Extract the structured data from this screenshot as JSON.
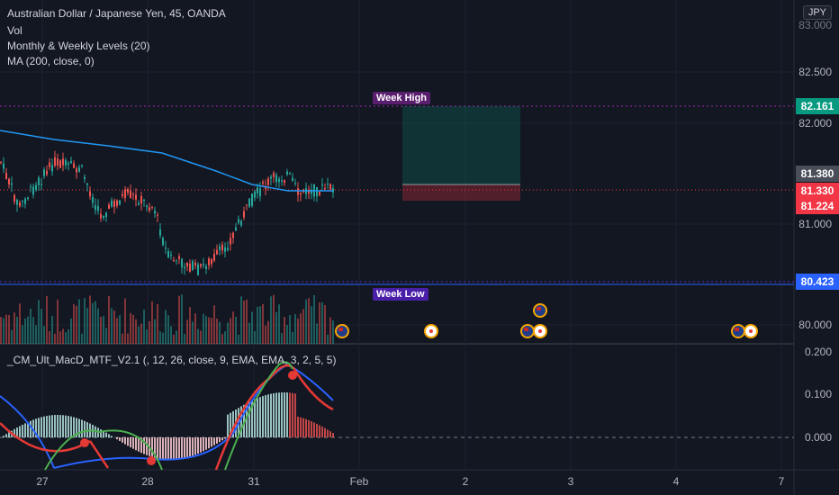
{
  "header": {
    "symbol_title": "Australian Dollar / Japanese Yen, 45, OANDA",
    "indicators": [
      "Vol",
      "Monthly & Weekly Levels (20)",
      "MA (200, close, 0)"
    ],
    "macd_title": "_CM_Ult_MacD_MTF_V2.1 (, 12, 26, close, 9, EMA, EMA, 3, 2, 5, 5)"
  },
  "currency_button": "JPY",
  "price_axis": {
    "top_partial": "83.000",
    "ticks": [
      "82.500",
      "82.000",
      "81.000",
      "80.000"
    ],
    "tags": [
      {
        "value": "82.161",
        "color": "#089981"
      },
      {
        "value": "81.380",
        "color": "#4a4e59"
      },
      {
        "value": "81.330",
        "color": "#f23645"
      },
      {
        "value": "81.224",
        "color": "#f23645"
      },
      {
        "value": "80.423",
        "color": "#2962ff"
      }
    ]
  },
  "macd_axis": {
    "ticks": [
      "0.200",
      "0.100",
      "0.000"
    ]
  },
  "levels": {
    "week_high_label": "Week High",
    "week_low_label": "Week Low"
  },
  "time_axis": {
    "labels": [
      "27",
      "28",
      "31",
      "Feb",
      "2",
      "3",
      "4",
      "7"
    ]
  },
  "colors": {
    "background": "#131722",
    "up": "#26a69a",
    "down": "#ef5350",
    "ma_line": "#2196f3",
    "week_high": "#9c27b0",
    "week_low": "#5c28c9"
  }
}
